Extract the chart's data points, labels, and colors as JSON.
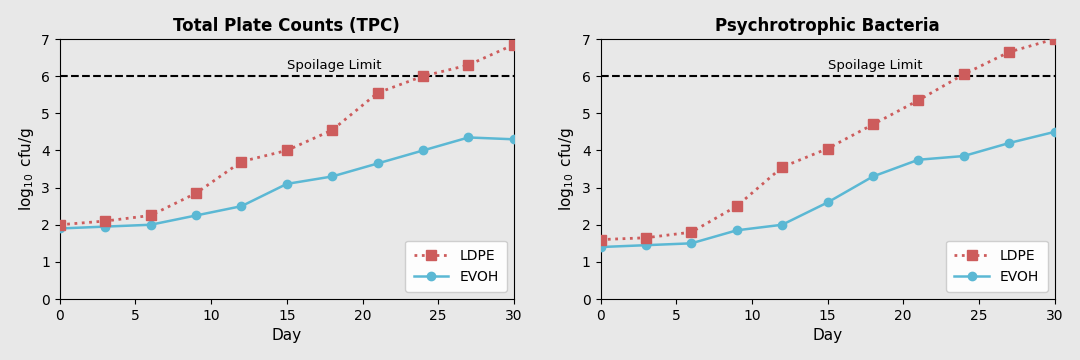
{
  "tpc": {
    "title": "Total Plate Counts (TPC)",
    "ldpe_x": [
      0,
      3,
      6,
      9,
      12,
      15,
      18,
      21,
      24,
      27,
      30
    ],
    "ldpe_y": [
      2.0,
      2.1,
      2.25,
      2.85,
      3.7,
      4.0,
      4.55,
      5.55,
      6.0,
      6.3,
      6.85
    ],
    "evoh_x": [
      0,
      3,
      6,
      9,
      12,
      15,
      18,
      21,
      24,
      27,
      30
    ],
    "evoh_y": [
      1.9,
      1.95,
      2.0,
      2.25,
      2.5,
      3.1,
      3.3,
      3.65,
      4.0,
      4.35,
      4.3
    ]
  },
  "psych": {
    "title": "Psychrotrophic Bacteria",
    "ldpe_x": [
      0,
      3,
      6,
      9,
      12,
      15,
      18,
      21,
      24,
      27,
      30
    ],
    "ldpe_y": [
      1.6,
      1.65,
      1.8,
      2.5,
      3.55,
      4.05,
      4.7,
      5.35,
      6.05,
      6.65,
      7.0
    ],
    "evoh_x": [
      0,
      3,
      6,
      9,
      12,
      15,
      18,
      21,
      24,
      27,
      30
    ],
    "evoh_y": [
      1.4,
      1.45,
      1.5,
      1.85,
      2.0,
      2.6,
      3.3,
      3.75,
      3.85,
      4.2,
      4.5
    ]
  },
  "spoilage_limit": 6.0,
  "spoilage_label": "Spoilage Limit",
  "xlabel": "Day",
  "ylabel": "$\\log_{10}$ cfu/g",
  "ylim": [
    0,
    7
  ],
  "xlim": [
    0,
    30
  ],
  "yticks": [
    0,
    1,
    2,
    3,
    4,
    5,
    6,
    7
  ],
  "xticks": [
    0,
    5,
    10,
    15,
    20,
    25,
    30
  ],
  "ldpe_color": "#cd5c5c",
  "evoh_color": "#5bb8d4",
  "ldpe_label": "LDPE",
  "evoh_label": "EVOH",
  "background_color": "#e8e8e8",
  "fig_width": 10.8,
  "fig_height": 3.6,
  "dpi": 100
}
